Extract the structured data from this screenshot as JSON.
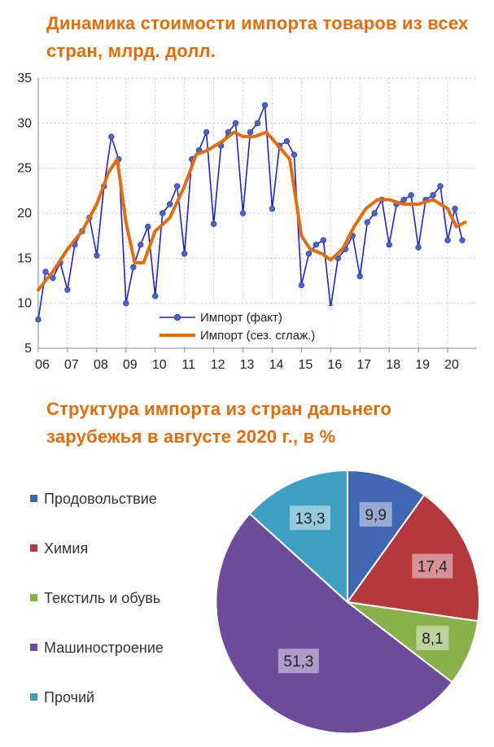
{
  "chart_data": [
    {
      "type": "line",
      "title": "Динамика стоимости импорта товаров из всех стран, млрд. долл.",
      "xlabel": "",
      "ylabel": "",
      "ylim": [
        5,
        35
      ],
      "yticks": [
        "5",
        "10",
        "15",
        "20",
        "25",
        "30",
        "35"
      ],
      "xlim": [
        2006,
        2021
      ],
      "xticks": [
        "06",
        "07",
        "08",
        "09",
        "10",
        "11",
        "12",
        "13",
        "14",
        "15",
        "16",
        "17",
        "18",
        "19",
        "20"
      ],
      "grid": true,
      "legend_position": "bottom-center",
      "series": [
        {
          "name": "Импорт (факт)",
          "color": "#1f1fd8",
          "marker": "circle",
          "x": [
            2006.0,
            2006.25,
            2006.5,
            2006.75,
            2007.0,
            2007.25,
            2007.5,
            2007.75,
            2008.0,
            2008.25,
            2008.5,
            2008.75,
            2009.0,
            2009.25,
            2009.5,
            2009.75,
            2010.0,
            2010.25,
            2010.5,
            2010.75,
            2011.0,
            2011.25,
            2011.5,
            2011.75,
            2012.0,
            2012.25,
            2012.5,
            2012.75,
            2013.0,
            2013.25,
            2013.5,
            2013.75,
            2014.0,
            2014.25,
            2014.5,
            2014.75,
            2015.0,
            2015.25,
            2015.5,
            2015.75,
            2016.0,
            2016.25,
            2016.5,
            2016.75,
            2017.0,
            2017.25,
            2017.5,
            2017.75,
            2018.0,
            2018.25,
            2018.5,
            2018.75,
            2019.0,
            2019.25,
            2019.5,
            2019.75,
            2020.0,
            2020.25,
            2020.5
          ],
          "y": [
            8.2,
            13.5,
            12.8,
            14.5,
            11.5,
            16.5,
            18.0,
            19.5,
            15.3,
            23.0,
            28.5,
            26.0,
            10.0,
            14.0,
            16.5,
            18.5,
            10.8,
            20.0,
            21.0,
            23.0,
            15.5,
            26.0,
            27.0,
            29.0,
            18.8,
            27.5,
            29.0,
            30.0,
            20.0,
            29.0,
            30.0,
            32.0,
            20.5,
            27.5,
            28.0,
            26.5,
            12.0,
            15.5,
            16.5,
            17.0,
            9.5,
            15.0,
            16.0,
            17.5,
            13.0,
            19.0,
            20.0,
            21.5,
            16.5,
            21.0,
            21.5,
            22.0,
            16.2,
            21.5,
            22.0,
            23.0,
            17.0,
            20.5,
            17.0
          ]
        },
        {
          "name": "Импорт (сез. сглаж.)",
          "color": "#e46c0a",
          "x": [
            2006.0,
            2006.5,
            2007.0,
            2007.5,
            2008.0,
            2008.4,
            2008.7,
            2009.0,
            2009.3,
            2009.6,
            2010.0,
            2010.5,
            2011.0,
            2011.4,
            2011.8,
            2012.3,
            2012.7,
            2013.0,
            2013.4,
            2013.8,
            2014.2,
            2014.6,
            2015.0,
            2015.3,
            2015.7,
            2016.0,
            2016.4,
            2016.8,
            2017.2,
            2017.6,
            2018.0,
            2018.5,
            2019.0,
            2019.5,
            2020.0,
            2020.3,
            2020.6
          ],
          "y": [
            11.5,
            13.5,
            16.0,
            18.0,
            21.0,
            24.5,
            26.0,
            19.0,
            14.5,
            14.5,
            18.0,
            19.5,
            23.0,
            26.5,
            27.0,
            28.0,
            29.0,
            28.5,
            28.5,
            29.0,
            27.5,
            26.0,
            17.5,
            16.0,
            15.5,
            14.8,
            16.0,
            18.5,
            20.5,
            21.5,
            21.5,
            21.0,
            21.0,
            21.5,
            20.5,
            18.5,
            19.0
          ]
        }
      ]
    },
    {
      "type": "pie",
      "title": "Структура импорта из стран дальнего зарубежья в августе 2020 г., в %",
      "legend_position": "left",
      "slices": [
        {
          "label": "Продовольствие",
          "value": 9.9,
          "text": "9,9",
          "color": "#4267b2"
        },
        {
          "label": "Химия",
          "value": 17.4,
          "text": "17,4",
          "color": "#b5393c"
        },
        {
          "label": "Текстиль и обувь",
          "value": 8.1,
          "text": "8,1",
          "color": "#88b04b"
        },
        {
          "label": "Машиностроение",
          "value": 51.3,
          "text": "51,3",
          "color": "#6b4c9a"
        },
        {
          "label": "Прочий",
          "value": 13.3,
          "text": "13,3",
          "color": "#3ea0c0"
        }
      ]
    }
  ]
}
